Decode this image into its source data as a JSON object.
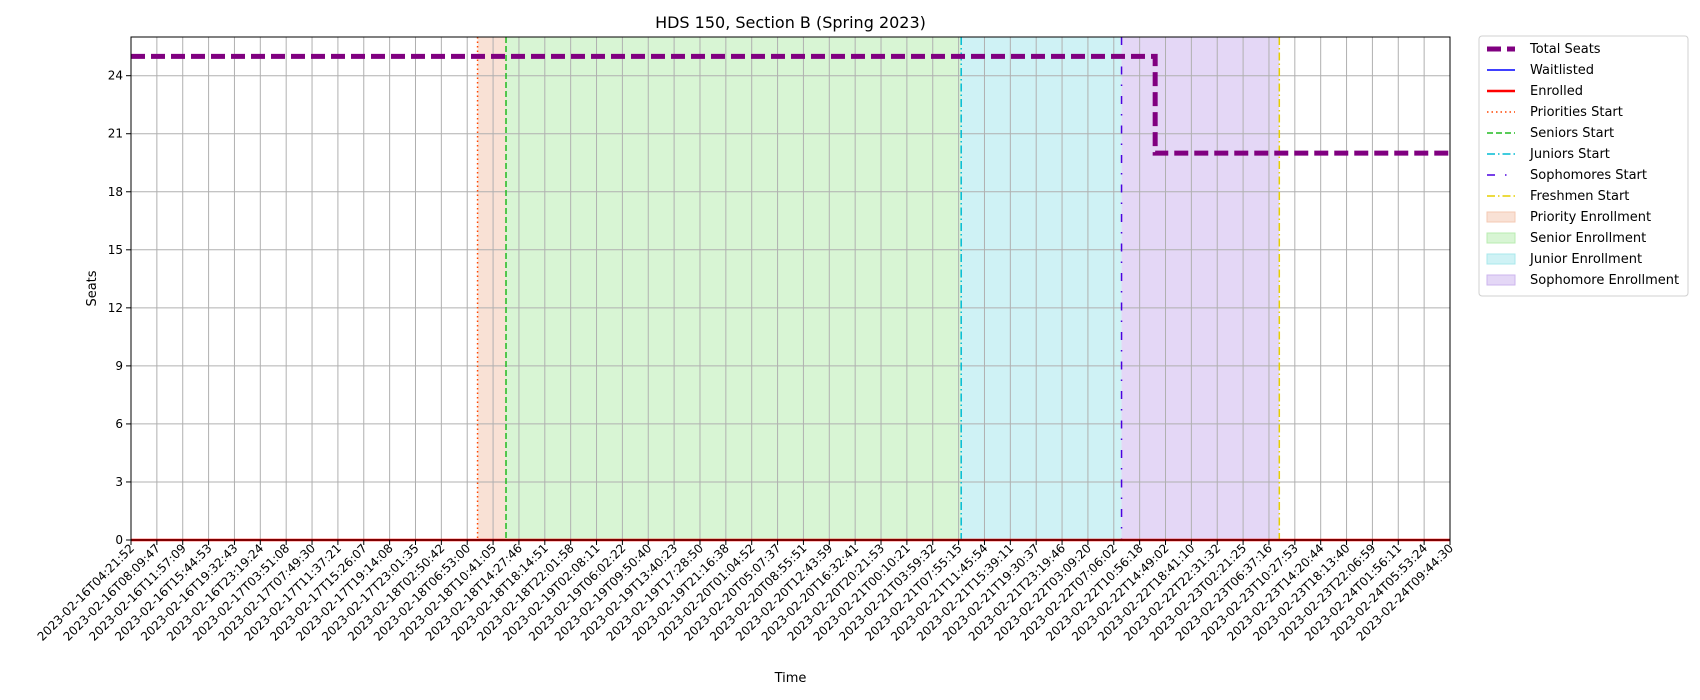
{
  "chart_data": {
    "type": "line",
    "title": "HDS 150, Section B (Spring 2023)",
    "xlabel": "Time",
    "ylabel": "Seats",
    "ylim": [
      0,
      26
    ],
    "yticks": [
      0,
      3,
      6,
      9,
      12,
      15,
      18,
      21,
      24
    ],
    "grid": true,
    "legend_position": "outside-right",
    "categories": [
      "2023-02-16T04:21:52",
      "2023-02-16T08:09:47",
      "2023-02-16T11:57:09",
      "2023-02-16T15:44:53",
      "2023-02-16T19:32:43",
      "2023-02-16T23:19:24",
      "2023-02-17T03:51:08",
      "2023-02-17T07:49:30",
      "2023-02-17T11:37:21",
      "2023-02-17T15:26:07",
      "2023-02-17T19:14:08",
      "2023-02-17T23:01:35",
      "2023-02-18T02:50:42",
      "2023-02-18T06:53:00",
      "2023-02-18T10:41:05",
      "2023-02-18T14:27:46",
      "2023-02-18T18:14:51",
      "2023-02-18T22:01:58",
      "2023-02-19T02:08:11",
      "2023-02-19T06:02:22",
      "2023-02-19T09:50:40",
      "2023-02-19T13:40:23",
      "2023-02-19T17:28:50",
      "2023-02-19T21:16:38",
      "2023-02-20T01:04:52",
      "2023-02-20T05:07:37",
      "2023-02-20T08:55:51",
      "2023-02-20T12:43:59",
      "2023-02-20T16:32:41",
      "2023-02-20T20:21:53",
      "2023-02-21T00:10:21",
      "2023-02-21T03:59:32",
      "2023-02-21T07:55:15",
      "2023-02-21T11:45:54",
      "2023-02-21T15:39:11",
      "2023-02-21T19:30:37",
      "2023-02-21T23:19:46",
      "2023-02-22T03:09:20",
      "2023-02-22T07:06:02",
      "2023-02-22T10:56:18",
      "2023-02-22T14:49:02",
      "2023-02-22T18:41:10",
      "2023-02-22T22:31:32",
      "2023-02-23T02:21:25",
      "2023-02-23T06:37:16",
      "2023-02-23T10:27:53",
      "2023-02-23T14:20:44",
      "2023-02-23T18:13:40",
      "2023-02-23T22:06:59",
      "2023-02-24T01:56:11",
      "2023-02-24T05:53:24",
      "2023-02-24T09:44:30"
    ],
    "series": [
      {
        "name": "Total Seats",
        "color": "#800080",
        "style": "dashed-thick",
        "values": [
          25,
          25,
          25,
          25,
          25,
          25,
          25,
          25,
          25,
          25,
          25,
          25,
          25,
          25,
          25,
          25,
          25,
          25,
          25,
          25,
          25,
          25,
          25,
          25,
          25,
          25,
          25,
          25,
          25,
          25,
          25,
          25,
          25,
          25,
          25,
          25,
          25,
          25,
          25,
          25,
          20,
          20,
          20,
          20,
          20,
          20,
          20,
          20,
          20,
          20,
          20,
          20
        ],
        "step_after_index": 39.6
      },
      {
        "name": "Waitlisted",
        "color": "#0000ff",
        "style": "solid",
        "values": [
          0,
          0,
          0,
          0,
          0,
          0,
          0,
          0,
          0,
          0,
          0,
          0,
          0,
          0,
          0,
          0,
          0,
          0,
          0,
          0,
          0,
          0,
          0,
          0,
          0,
          0,
          0,
          0,
          0,
          0,
          0,
          0,
          0,
          0,
          0,
          0,
          0,
          0,
          0,
          0,
          0,
          0,
          0,
          0,
          0,
          0,
          0,
          0,
          0,
          0,
          0,
          0
        ]
      },
      {
        "name": "Enrolled",
        "color": "#ff0000",
        "style": "solid",
        "values": [
          0,
          0,
          0,
          0,
          0,
          0,
          0,
          0,
          0,
          0,
          0,
          0,
          0,
          0,
          0,
          0,
          0,
          0,
          0,
          0,
          0,
          0,
          0,
          0,
          0,
          0,
          0,
          0,
          0,
          0,
          0,
          0,
          0,
          0,
          0,
          0,
          0,
          0,
          0,
          0,
          0,
          0,
          0,
          0,
          0,
          0,
          0,
          0,
          0,
          0,
          0,
          0
        ]
      }
    ],
    "vertical_markers": [
      {
        "name": "Priorities Start",
        "color": "#ff4500",
        "style": "dotted",
        "at_index": 13.4
      },
      {
        "name": "Seniors Start",
        "color": "#22bb22",
        "style": "dashed",
        "at_index": 14.5
      },
      {
        "name": "Juniors Start",
        "color": "#00bcd4",
        "style": "dashdot",
        "at_index": 32.1
      },
      {
        "name": "Sophomores Start",
        "color": "#4b00e0",
        "style": "loosely-dashdot",
        "at_index": 38.3
      },
      {
        "name": "Freshmen Start",
        "color": "#e6cf00",
        "style": "dashdot",
        "at_index": 44.4
      }
    ],
    "shaded_regions": [
      {
        "name": "Priority Enrollment",
        "color": "#f4c9b3",
        "from_index": 13.4,
        "to_index": 14.5
      },
      {
        "name": "Senior Enrollment",
        "color": "#b8ecb0",
        "from_index": 14.5,
        "to_index": 32.1
      },
      {
        "name": "Junior Enrollment",
        "color": "#a8e8ec",
        "from_index": 32.1,
        "to_index": 38.3
      },
      {
        "name": "Sophomore Enrollment",
        "color": "#cdb6ee",
        "from_index": 38.3,
        "to_index": 44.4
      }
    ],
    "legend": [
      {
        "label": "Total Seats",
        "kind": "line",
        "color": "#800080",
        "style": "dashed-thick"
      },
      {
        "label": "Waitlisted",
        "kind": "line",
        "color": "#0000ff",
        "style": "solid"
      },
      {
        "label": "Enrolled",
        "kind": "line",
        "color": "#ff0000",
        "style": "solid-thick"
      },
      {
        "label": "Priorities Start",
        "kind": "line",
        "color": "#ff4500",
        "style": "dotted"
      },
      {
        "label": "Seniors Start",
        "kind": "line",
        "color": "#22bb22",
        "style": "dashed"
      },
      {
        "label": "Juniors Start",
        "kind": "line",
        "color": "#00bcd4",
        "style": "dashdot"
      },
      {
        "label": "Sophomores Start",
        "kind": "line",
        "color": "#4b00e0",
        "style": "loosely-dashdot"
      },
      {
        "label": "Freshmen Start",
        "kind": "line",
        "color": "#e6cf00",
        "style": "dashdot"
      },
      {
        "label": "Priority Enrollment",
        "kind": "patch",
        "color": "#f4c9b3"
      },
      {
        "label": "Senior Enrollment",
        "kind": "patch",
        "color": "#b8ecb0"
      },
      {
        "label": "Junior Enrollment",
        "kind": "patch",
        "color": "#a8e8ec"
      },
      {
        "label": "Sophomore Enrollment",
        "kind": "patch",
        "color": "#cdb6ee"
      }
    ]
  }
}
